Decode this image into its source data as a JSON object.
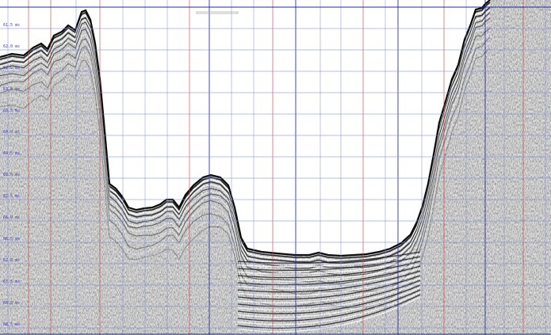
{
  "viewer": {
    "time_ticks": [
      "61.5 ms",
      "62.0 ms",
      "62.5 ms",
      "63.0 ms",
      "63.5 ms",
      "64.0 ms",
      "64.5 ms",
      "65.0 ms",
      "65.5 ms",
      "66.0 ms",
      "66.5 ms",
      "67.0 ms",
      "67.5 ms",
      "68.0 ms",
      "68.5 ms",
      "69.0 ms"
    ],
    "colors": {
      "background": "#ffffff",
      "grid_major": "#1e2a9a",
      "grid_minor": "#7a8ccd",
      "grid_marker": "#d23c3c",
      "trace_dark": "#111111",
      "noise": "#8a8a8a"
    }
  }
}
